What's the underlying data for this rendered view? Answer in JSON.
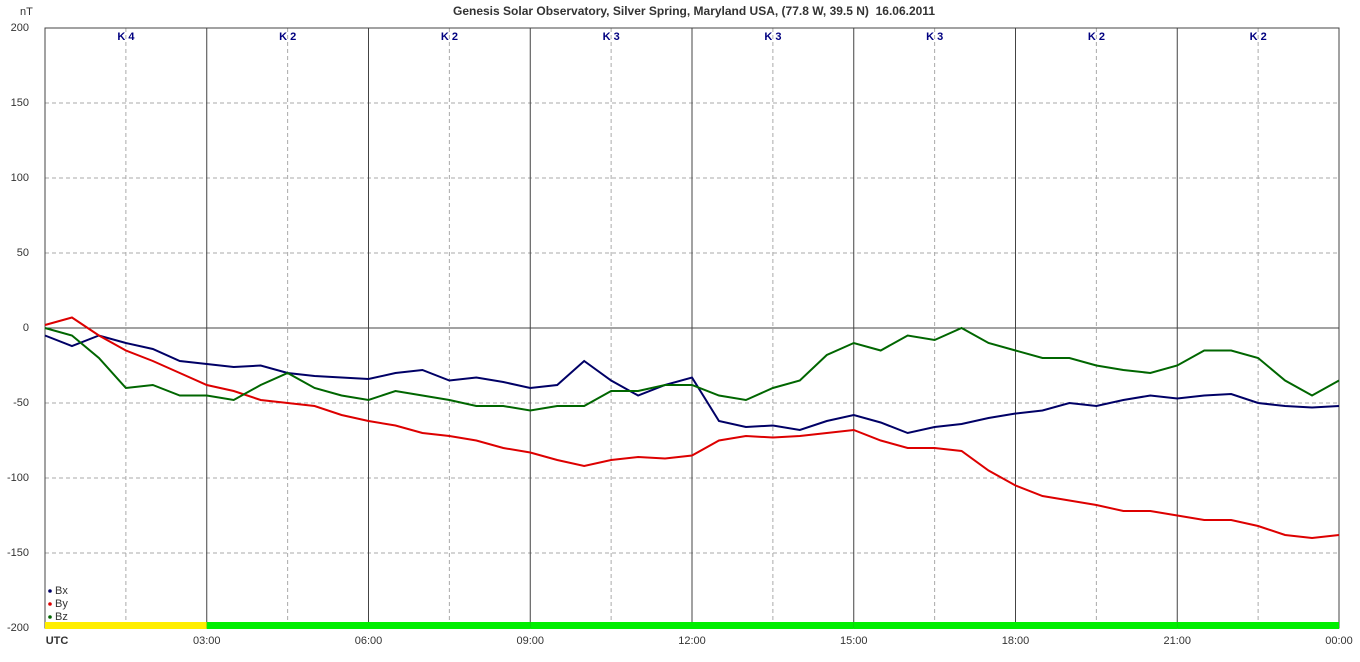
{
  "chart_data": {
    "type": "line",
    "title": "Genesis Solar Observatory, Silver Spring, Maryland USA, (77.8 W, 39.5 N)  16.06.2011",
    "y_label": "nT",
    "x": [
      0,
      0.5,
      1,
      1.5,
      2,
      2.5,
      3,
      3.5,
      4,
      4.5,
      5,
      5.5,
      6,
      6.5,
      7,
      7.5,
      8,
      8.5,
      9,
      9.5,
      10,
      10.5,
      11,
      11.5,
      12,
      12.5,
      13,
      13.5,
      14,
      14.5,
      15,
      15.5,
      16,
      16.5,
      17,
      17.5,
      18,
      18.5,
      19,
      19.5,
      20,
      20.5,
      21,
      21.5,
      22,
      22.5,
      23,
      23.5,
      24
    ],
    "series": [
      {
        "name": "Bx",
        "color": "#000066",
        "values": [
          -5,
          -12,
          -5,
          -10,
          -14,
          -22,
          -24,
          -26,
          -25,
          -30,
          -32,
          -33,
          -34,
          -30,
          -28,
          -35,
          -33,
          -36,
          -40,
          -38,
          -22,
          -35,
          -45,
          -38,
          -33,
          -62,
          -66,
          -65,
          -68,
          -62,
          -58,
          -63,
          -70,
          -66,
          -64,
          -60,
          -57,
          -55,
          -50,
          -52,
          -48,
          -45,
          -47,
          -45,
          -44,
          -50,
          -52,
          -53,
          -52
        ]
      },
      {
        "name": "By",
        "color": "#dd0000",
        "values": [
          2,
          7,
          -5,
          -15,
          -22,
          -30,
          -38,
          -42,
          -48,
          -50,
          -52,
          -58,
          -62,
          -65,
          -70,
          -72,
          -75,
          -80,
          -83,
          -88,
          -92,
          -88,
          -86,
          -87,
          -85,
          -75,
          -72,
          -73,
          -72,
          -70,
          -68,
          -75,
          -80,
          -80,
          -82,
          -95,
          -105,
          -112,
          -115,
          -118,
          -122,
          -122,
          -125,
          -128,
          -128,
          -132,
          -138,
          -140,
          -138
        ]
      },
      {
        "name": "Bz",
        "color": "#006600",
        "values": [
          0,
          -5,
          -20,
          -40,
          -38,
          -45,
          -45,
          -48,
          -38,
          -30,
          -40,
          -45,
          -48,
          -42,
          -45,
          -48,
          -52,
          -52,
          -55,
          -52,
          -52,
          -42,
          -42,
          -38,
          -38,
          -45,
          -48,
          -40,
          -35,
          -18,
          -10,
          -15,
          -5,
          -8,
          0,
          -10,
          -15,
          -20,
          -20,
          -25,
          -28,
          -30,
          -25,
          -15,
          -15,
          -20,
          -35,
          -45,
          -35
        ]
      }
    ],
    "xlim": [
      0,
      24
    ],
    "xticks": [
      {
        "value": 0,
        "label": "UTC"
      },
      {
        "value": 3,
        "label": "03:00"
      },
      {
        "value": 6,
        "label": "06:00"
      },
      {
        "value": 9,
        "label": "09:00"
      },
      {
        "value": 12,
        "label": "12:00"
      },
      {
        "value": 15,
        "label": "15:00"
      },
      {
        "value": 18,
        "label": "18:00"
      },
      {
        "value": 21,
        "label": "21:00"
      },
      {
        "value": 24,
        "label": "00:00"
      }
    ],
    "ylim": [
      -200,
      200
    ],
    "yticks": [
      -200,
      -150,
      -100,
      -50,
      0,
      50,
      100,
      150,
      200
    ],
    "grid": true,
    "k_index": {
      "labels": [
        "K 4",
        "K 2",
        "K 2",
        "K 3",
        "K 3",
        "K 3",
        "K 2",
        "K 2"
      ],
      "colors": [
        "#ffee00",
        "#00ee00",
        "#00ee00",
        "#00ee00",
        "#00ee00",
        "#00ee00",
        "#00ee00",
        "#00ee00"
      ]
    },
    "legend": "lower left"
  }
}
